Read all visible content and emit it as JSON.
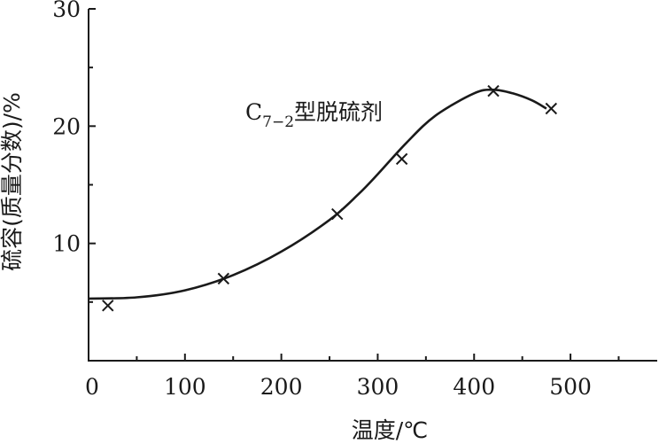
{
  "chart_data": {
    "type": "scatter",
    "xlabel": "温度/℃",
    "ylabel": "硫容(质量分数)/%",
    "xlim": [
      0,
      590
    ],
    "ylim": [
      0,
      30
    ],
    "xticks": [
      0,
      100,
      200,
      300,
      400,
      500
    ],
    "yticks": [
      10,
      20,
      30
    ],
    "x_tick_labels": [
      "0",
      "100",
      "200",
      "300",
      "400",
      "500"
    ],
    "y_tick_labels": [
      "10",
      "20",
      "30"
    ],
    "grid": false,
    "annotation": {
      "main": "C",
      "sub": "7−2",
      "suffix": "型脱硫剂"
    },
    "series": [
      {
        "marker": "x",
        "x": [
          20,
          140,
          258,
          325,
          420,
          480
        ],
        "y": [
          4.7,
          7.0,
          12.5,
          17.2,
          23.0,
          21.5
        ]
      }
    ],
    "fit_curve": {
      "x": [
        0,
        50,
        100,
        150,
        200,
        250,
        280,
        300,
        330,
        360,
        400,
        420,
        440,
        460,
        475
      ],
      "y": [
        5.3,
        5.4,
        6.0,
        7.3,
        9.3,
        12.0,
        14.2,
        15.9,
        18.6,
        20.9,
        22.8,
        23.1,
        22.8,
        22.2,
        21.5
      ]
    }
  }
}
